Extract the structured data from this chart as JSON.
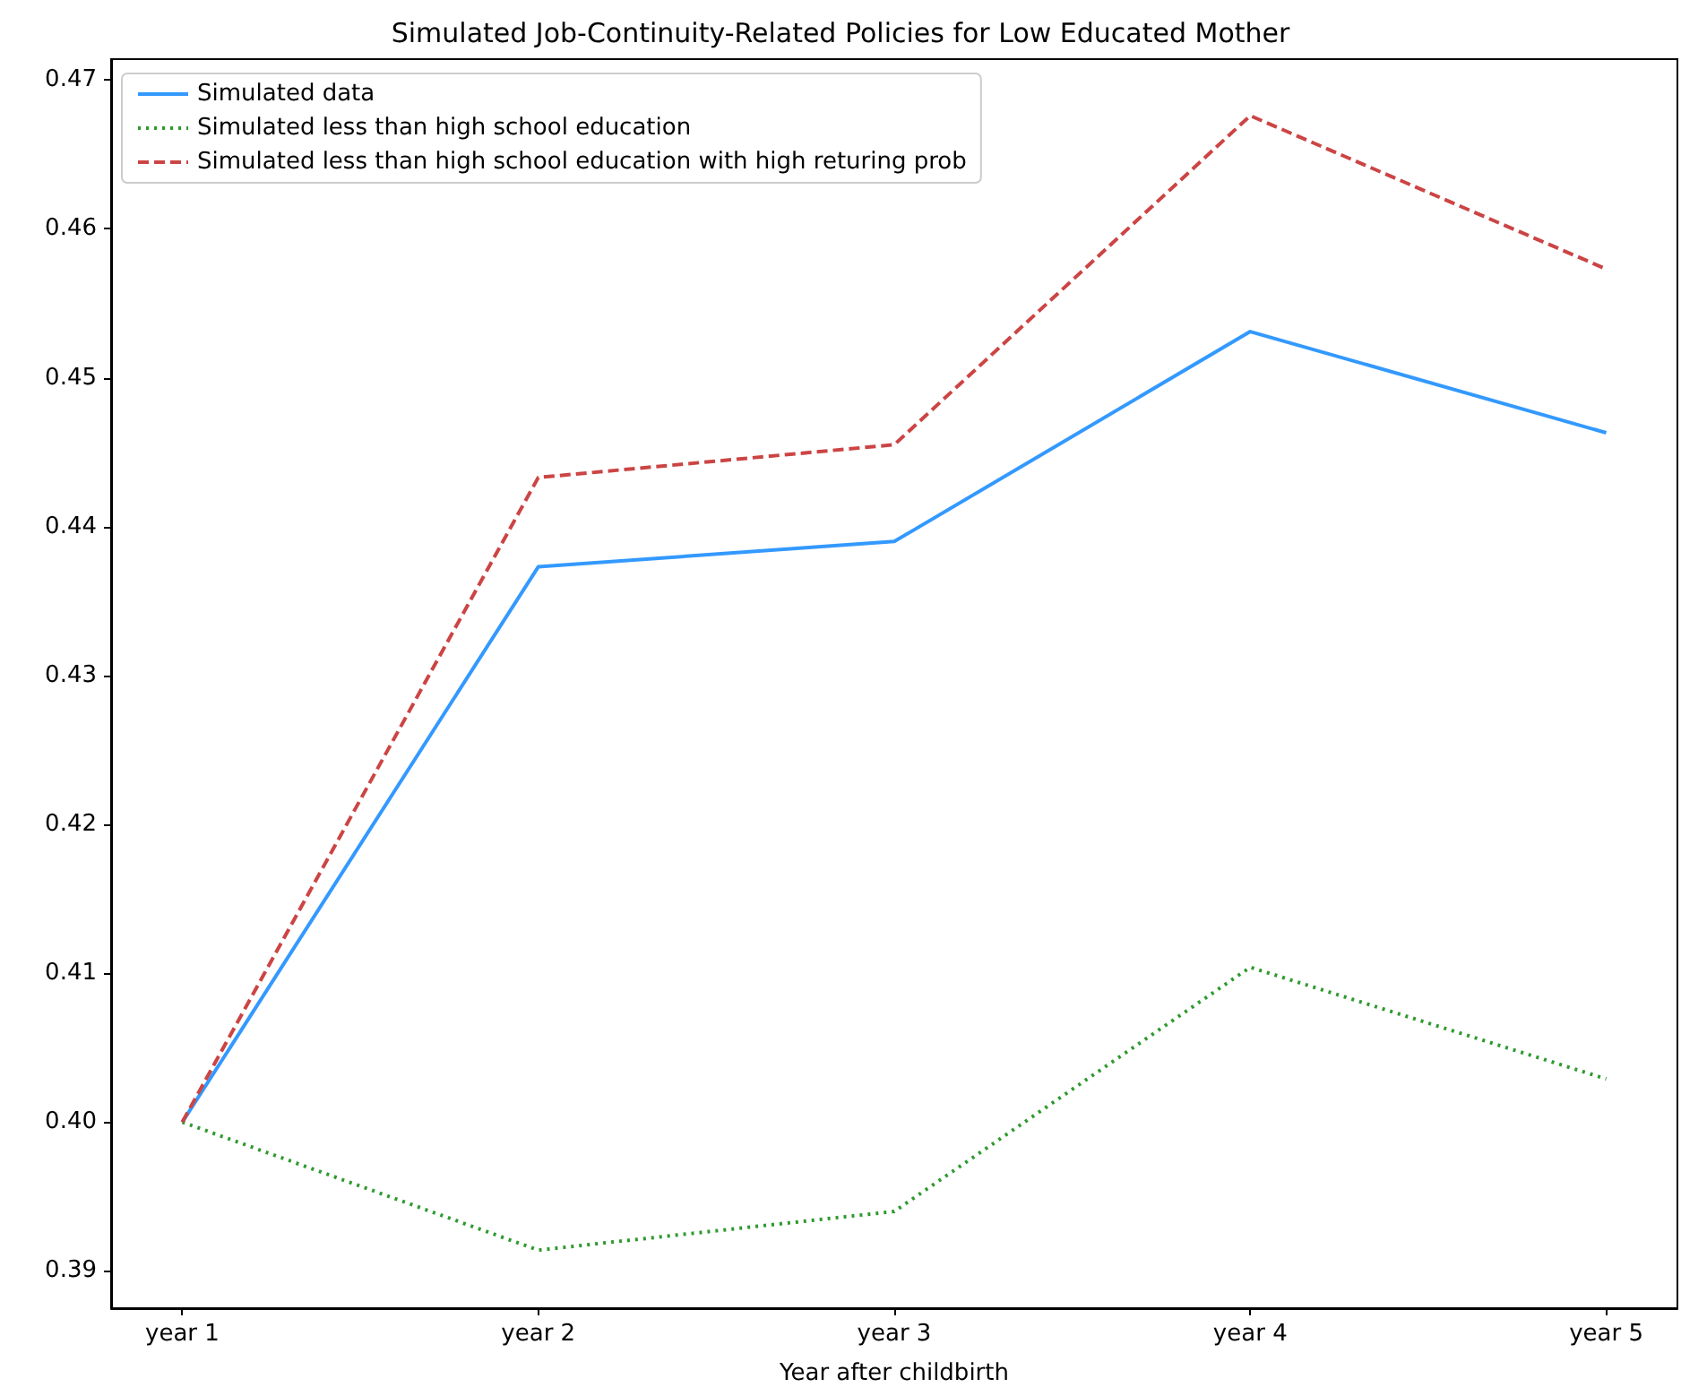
{
  "chart_data": {
    "type": "line",
    "title": "Simulated Job-Continuity-Related Policies for Low Educated Mother",
    "xlabel": "Year after childbirth",
    "categories": [
      "year 1",
      "year 2",
      "year 3",
      "year 4",
      "year 5"
    ],
    "series": [
      {
        "name": "Simulated data",
        "color": "#3399ff",
        "line_style": "solid",
        "values": [
          0.4,
          0.4373,
          0.439,
          0.4531,
          0.4463
        ]
      },
      {
        "name": "Simulated less than high school education",
        "color": "#2e9a2e",
        "line_style": "dotted",
        "values": [
          0.4,
          0.3914,
          0.394,
          0.4104,
          0.4029
        ]
      },
      {
        "name": "Simulated less than high school education with high returing prob",
        "color": "#cc4444",
        "line_style": "dashed",
        "values": [
          0.4,
          0.4433,
          0.4455,
          0.4676,
          0.4573
        ]
      }
    ],
    "ylim": [
      0.3875,
      0.4714
    ],
    "yticks": [
      {
        "value": 0.39,
        "label": "0.39"
      },
      {
        "value": 0.4,
        "label": "0.40"
      },
      {
        "value": 0.41,
        "label": "0.41"
      },
      {
        "value": 0.42,
        "label": "0.42"
      },
      {
        "value": 0.43,
        "label": "0.43"
      },
      {
        "value": 0.44,
        "label": "0.44"
      },
      {
        "value": 0.45,
        "label": "0.45"
      },
      {
        "value": 0.46,
        "label": "0.46"
      },
      {
        "value": 0.47,
        "label": "0.47"
      }
    ],
    "grid": false,
    "legend": "top left",
    "marker": "none"
  }
}
